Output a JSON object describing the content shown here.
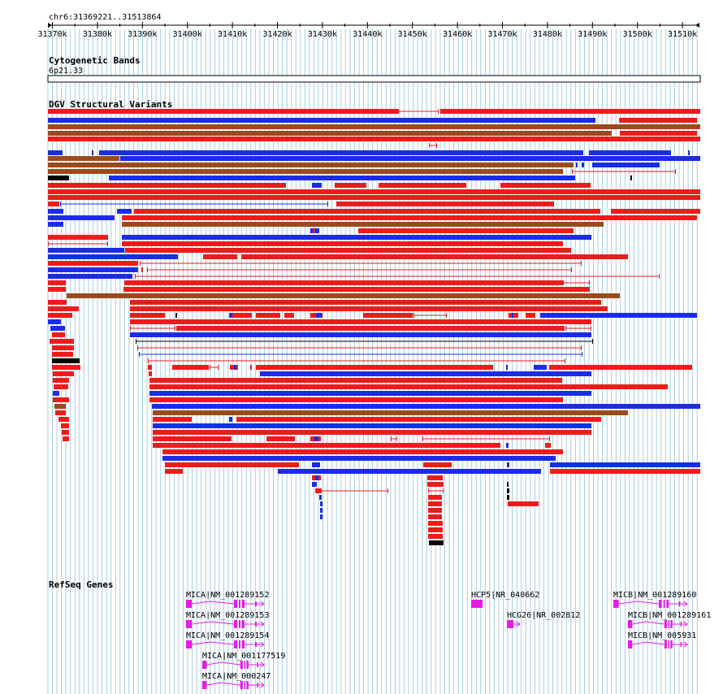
{
  "region": "chr6:31369221..31513864",
  "ruler": {
    "ticks": [
      "31370k",
      "31380k",
      "31390k",
      "31400k",
      "31410k",
      "31420k",
      "31430k",
      "31440k",
      "31450k",
      "31460k",
      "31470k",
      "31480k",
      "31490k",
      "31500k",
      "31510k"
    ]
  },
  "tracks": {
    "cytobands": {
      "title": "Cytogenetic Bands",
      "band": "6p21.33"
    },
    "dgv": {
      "title": "DGV Structural Variants"
    },
    "refseq": {
      "title": "RefSeq Genes",
      "genes": [
        {
          "label": "MICA|NM_001289152"
        },
        {
          "label": "MICA|NM_001289153"
        },
        {
          "label": "MICA|NM_001289154"
        },
        {
          "label": "MICA|NM_001177519"
        },
        {
          "label": "MICA|NM_000247"
        },
        {
          "label": "HCP5|NR_040662"
        },
        {
          "label": "HCG26|NR_002812"
        },
        {
          "label": "MICB|NM_001289160"
        },
        {
          "label": "MICB|NM_001289161"
        },
        {
          "label": "MICB|NM_005931"
        }
      ]
    }
  },
  "colors": {
    "loss": "#ec1c1c",
    "gain": "#1c2ce4",
    "gain_loss": "#9a4a1c",
    "complex": "#000000",
    "gene": "#e41ce4",
    "grid": "#a8cce0"
  }
}
